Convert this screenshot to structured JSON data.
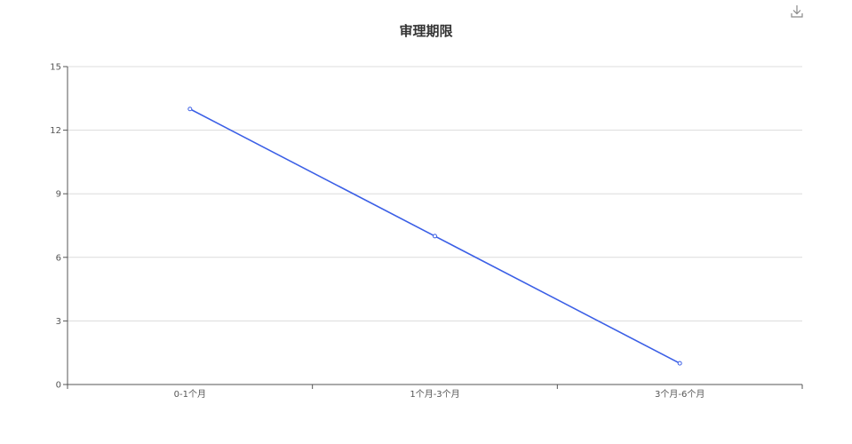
{
  "toolbar": {
    "download_icon": "download-icon"
  },
  "colors": {
    "line": "#3b5fe6",
    "grid": "#dcdcdc",
    "axis": "#555555",
    "title": "#333333"
  },
  "chart_data": {
    "type": "line",
    "title": "审理期限",
    "categories": [
      "0-1个月",
      "1个月-3个月",
      "3个月-6个月"
    ],
    "series": [
      {
        "values": [
          13,
          7,
          1
        ]
      }
    ],
    "ylim": [
      0,
      15
    ],
    "yticks": [
      0,
      3,
      6,
      9,
      12,
      15
    ],
    "grid": true,
    "legend": "none"
  }
}
